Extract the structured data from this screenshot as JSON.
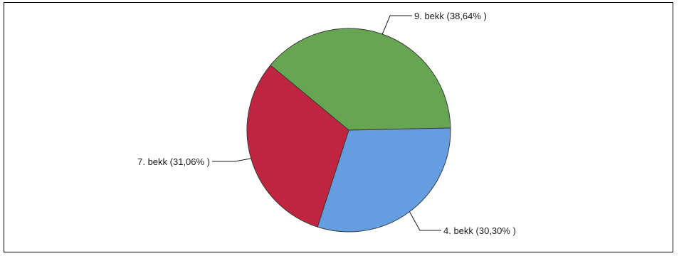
{
  "chart_data": {
    "type": "pie",
    "title": "",
    "slices": [
      {
        "label": "9. bekk (38,64% )",
        "category": "9. bekk",
        "value": 38.64,
        "color": "#66a552"
      },
      {
        "label": "4. bekk (30,30% )",
        "category": "4. bekk",
        "value": 30.3,
        "color": "#659ee0"
      },
      {
        "label": "7. bekk (31,06% )",
        "category": "7. bekk",
        "value": 31.06,
        "color": "#c02540"
      }
    ],
    "legend": "none"
  }
}
